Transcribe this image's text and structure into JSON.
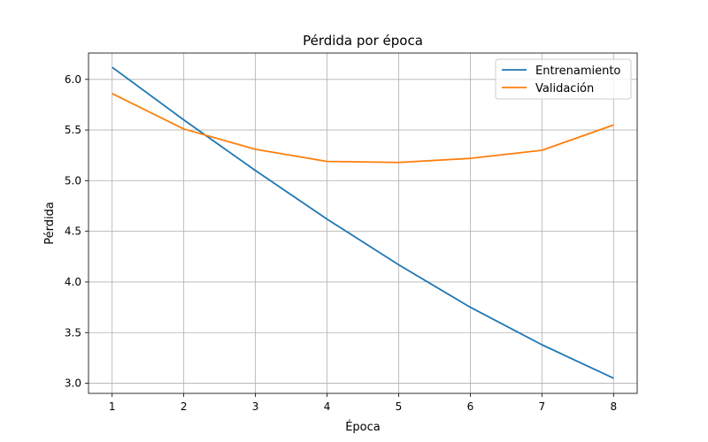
{
  "chart_data": {
    "type": "line",
    "title": "Pérdida por época",
    "xlabel": "Época",
    "ylabel": "Pérdida",
    "x": [
      1,
      2,
      3,
      4,
      5,
      6,
      7,
      8
    ],
    "xlim": [
      0.67,
      8.33
    ],
    "ylim": [
      2.9,
      6.26
    ],
    "xticks": [
      1,
      2,
      3,
      4,
      5,
      6,
      7,
      8
    ],
    "yticks": [
      3.0,
      3.5,
      4.0,
      4.5,
      5.0,
      5.5,
      6.0
    ],
    "ytick_labels": [
      "3.0",
      "3.5",
      "4.0",
      "4.5",
      "5.0",
      "5.5",
      "6.0"
    ],
    "grid": true,
    "legend_position": "top-right",
    "series": [
      {
        "name": "Entrenamiento",
        "color": "#1f77b4",
        "values": [
          6.12,
          5.6,
          5.1,
          4.62,
          4.17,
          3.75,
          3.38,
          3.05
        ]
      },
      {
        "name": "Validación",
        "color": "#ff7f0e",
        "values": [
          5.86,
          5.51,
          5.31,
          5.19,
          5.18,
          5.22,
          5.3,
          5.55
        ]
      }
    ]
  }
}
